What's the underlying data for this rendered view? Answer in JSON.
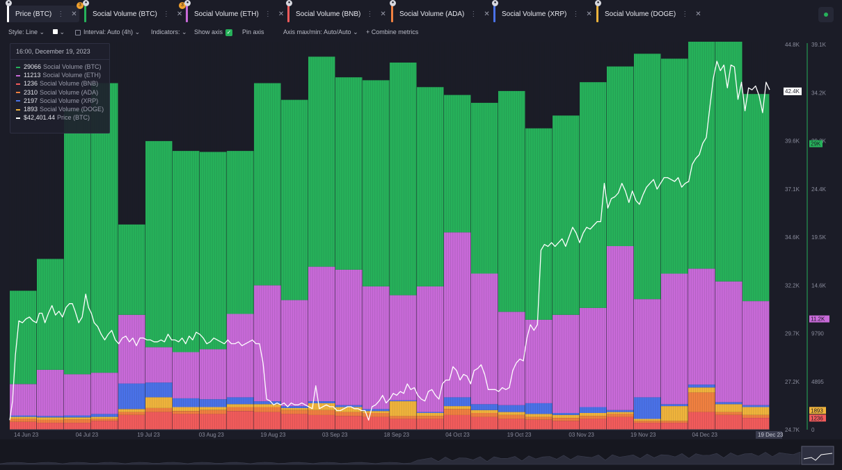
{
  "tabs": [
    {
      "label": "Price (BTC)",
      "color": "#ffffff",
      "active": true,
      "badge": "3"
    },
    {
      "label": "Social Volume (BTC)",
      "color": "#26b15a",
      "active": false,
      "badge": "3"
    },
    {
      "label": "Social Volume (ETH)",
      "color": "#c86ad8",
      "active": false,
      "badge": ""
    },
    {
      "label": "Social Volume (BNB)",
      "color": "#f25b5b",
      "active": false,
      "badge": ""
    },
    {
      "label": "Social Volume (ADA)",
      "color": "#f08040",
      "active": false,
      "badge": ""
    },
    {
      "label": "Social Volume (XRP)",
      "color": "#4a72e8",
      "active": false,
      "badge": ""
    },
    {
      "label": "Social Volume (DOGE)",
      "color": "#f0b43c",
      "active": false,
      "badge": ""
    }
  ],
  "toolbar": {
    "style_label": "Style: Line",
    "interval_label": "Interval: Auto (4h)",
    "indicators_label": "Indicators:",
    "show_axis_label": "Show axis",
    "pin_axis_label": "Pin axis",
    "axis_label": "Axis max/min: Auto/Auto",
    "combine_label": "Combine metrics"
  },
  "tooltip": {
    "date": "16:00, December 19, 2023",
    "rows": [
      {
        "value": "29066",
        "name": "Social Volume (BTC)",
        "color": "#26b15a"
      },
      {
        "value": "11213",
        "name": "Social Volume (ETH)",
        "color": "#c86ad8"
      },
      {
        "value": "1236",
        "name": "Social Volume (BNB)",
        "color": "#f25b5b"
      },
      {
        "value": "2310",
        "name": "Social Volume (ADA)",
        "color": "#f08040"
      },
      {
        "value": "2197",
        "name": "Social Volume (XRP)",
        "color": "#4a72e8"
      },
      {
        "value": "1893",
        "name": "Social Volume (DOGE)",
        "color": "#f0b43c"
      },
      {
        "value": "$42,401.44",
        "name": "Price (BTC)",
        "color": "#ffffff"
      }
    ]
  },
  "chart_data": {
    "type": "bar",
    "x_ticks": [
      "14 Jun 23",
      "04 Jul 23",
      "19 Jul 23",
      "03 Aug 23",
      "19 Aug 23",
      "03 Sep 23",
      "18 Sep 23",
      "04 Oct 23",
      "19 Oct 23",
      "03 Nov 23",
      "19 Nov 23",
      "04 Dec 23"
    ],
    "x_end_label": "19 Dec 23",
    "price_axis": {
      "ticks": [
        "44.8K",
        "42.1K",
        "39.6K",
        "37.1K",
        "34.6K",
        "32.2K",
        "29.7K",
        "27.2K",
        "24.7K"
      ],
      "min": 24700,
      "max": 44800,
      "current_label": "42.4K",
      "current": 42400
    },
    "volume_axis": {
      "ticks": [
        "39.1K",
        "34.2K",
        "29.3K",
        "24.4K",
        "19.5K",
        "14.6K",
        "9790",
        "4895",
        "0"
      ],
      "min": 0,
      "max": 39100,
      "labels": [
        {
          "text": "29K",
          "value": 29066,
          "color": "#26b15a"
        },
        {
          "text": "11.2K",
          "value": 11213,
          "color": "#c86ad8"
        },
        {
          "text": "1893",
          "value": 1893,
          "color": "#f0b43c"
        },
        {
          "text": "1236",
          "value": 1236,
          "color": "#f25b5b"
        }
      ]
    },
    "stack_order": [
      "BNB",
      "ADA",
      "DOGE",
      "XRP",
      "ETH",
      "BTC"
    ],
    "series_colors": {
      "BTC": "#26b15a",
      "ETH": "#c86ad8",
      "BNB": "#f25b5b",
      "ADA": "#f08040",
      "XRP": "#4a72e8",
      "DOGE": "#f0b43c"
    },
    "weeks": [
      {
        "BTC": 9500,
        "ETH": 3200,
        "BNB": 800,
        "ADA": 300,
        "XRP": 150,
        "DOGE": 200
      },
      {
        "BTC": 11300,
        "ETH": 4700,
        "BNB": 700,
        "ADA": 300,
        "XRP": 150,
        "DOGE": 250
      },
      {
        "BTC": 27000,
        "ETH": 4200,
        "BNB": 700,
        "ADA": 350,
        "XRP": 200,
        "DOGE": 200
      },
      {
        "BTC": 29500,
        "ETH": 4200,
        "BNB": 900,
        "ADA": 200,
        "XRP": 300,
        "DOGE": 200
      },
      {
        "BTC": 9200,
        "ETH": 7000,
        "BNB": 1500,
        "ADA": 300,
        "XRP": 2600,
        "DOGE": 300
      },
      {
        "BTC": 21000,
        "ETH": 3600,
        "BNB": 1800,
        "ADA": 400,
        "XRP": 1500,
        "DOGE": 1100
      },
      {
        "BTC": 20500,
        "ETH": 4700,
        "BNB": 1600,
        "ADA": 300,
        "XRP": 900,
        "DOGE": 400
      },
      {
        "BTC": 20100,
        "ETH": 5100,
        "BNB": 1600,
        "ADA": 400,
        "XRP": 800,
        "DOGE": 300
      },
      {
        "BTC": 16600,
        "ETH": 8500,
        "BNB": 1900,
        "ADA": 400,
        "XRP": 700,
        "DOGE": 300
      },
      {
        "BTC": 20600,
        "ETH": 11800,
        "BNB": 1800,
        "ADA": 500,
        "XRP": 300,
        "DOGE": 300
      },
      {
        "BTC": 20400,
        "ETH": 10800,
        "BNB": 1600,
        "ADA": 400,
        "XRP": 200,
        "DOGE": 200
      },
      {
        "BTC": 21400,
        "ETH": 13700,
        "BNB": 1500,
        "ADA": 500,
        "XRP": 200,
        "DOGE": 700
      },
      {
        "BTC": 19600,
        "ETH": 13800,
        "BNB": 1400,
        "ADA": 400,
        "XRP": 200,
        "DOGE": 500
      },
      {
        "BTC": 21000,
        "ETH": 12500,
        "BNB": 1300,
        "ADA": 400,
        "XRP": 200,
        "DOGE": 200
      },
      {
        "BTC": 23700,
        "ETH": 10700,
        "BNB": 1100,
        "ADA": 300,
        "XRP": 100,
        "DOGE": 1500
      },
      {
        "BTC": 20300,
        "ETH": 12800,
        "BNB": 1100,
        "ADA": 300,
        "XRP": 100,
        "DOGE": 300
      },
      {
        "BTC": 14000,
        "ETH": 16800,
        "BNB": 1500,
        "ADA": 600,
        "XRP": 900,
        "DOGE": 300
      },
      {
        "BTC": 17400,
        "ETH": 13300,
        "BNB": 1300,
        "ADA": 400,
        "XRP": 600,
        "DOGE": 300
      },
      {
        "BTC": 22500,
        "ETH": 9500,
        "BNB": 1100,
        "ADA": 400,
        "XRP": 700,
        "DOGE": 300
      },
      {
        "BTC": 19500,
        "ETH": 8500,
        "BNB": 1000,
        "ADA": 300,
        "XRP": 1100,
        "DOGE": 300
      },
      {
        "BTC": 20300,
        "ETH": 10000,
        "BNB": 900,
        "ADA": 300,
        "XRP": 200,
        "DOGE": 300
      },
      {
        "BTC": 23000,
        "ETH": 10100,
        "BNB": 1100,
        "ADA": 300,
        "XRP": 600,
        "DOGE": 300
      },
      {
        "BTC": 18300,
        "ETH": 16700,
        "BNB": 1300,
        "ADA": 300,
        "XRP": 200,
        "DOGE": 200
      },
      {
        "BTC": 25000,
        "ETH": 10000,
        "BNB": 700,
        "ADA": 200,
        "XRP": 2200,
        "DOGE": 200
      },
      {
        "BTC": 21900,
        "ETH": 13300,
        "BNB": 700,
        "ADA": 200,
        "XRP": 200,
        "DOGE": 1500
      },
      {
        "BTC": 33500,
        "ETH": 11800,
        "BNB": 1800,
        "ADA": 2000,
        "XRP": 300,
        "DOGE": 500
      },
      {
        "BTC": 31700,
        "ETH": 12300,
        "BNB": 1500,
        "ADA": 300,
        "XRP": 200,
        "DOGE": 800
      },
      {
        "BTC": 21100,
        "ETH": 10600,
        "BNB": 1200,
        "ADA": 300,
        "XRP": 200,
        "DOGE": 800
      }
    ],
    "price": [
      [
        0,
        25200
      ],
      [
        0.4,
        26200
      ],
      [
        0.8,
        28600
      ],
      [
        1.3,
        30400
      ],
      [
        1.8,
        30300
      ],
      [
        2.3,
        30500
      ],
      [
        2.8,
        30600
      ],
      [
        3.3,
        30400
      ],
      [
        3.8,
        30300
      ],
      [
        4.2,
        30800
      ],
      [
        4.6,
        30800
      ],
      [
        5,
        30300
      ],
      [
        5.5,
        30800
      ],
      [
        6,
        31200
      ],
      [
        6.5,
        30700
      ],
      [
        7,
        30900
      ],
      [
        7.5,
        30600
      ],
      [
        8,
        31100
      ],
      [
        8.5,
        31300
      ],
      [
        8.9,
        31300
      ],
      [
        9.3,
        30900
      ],
      [
        9.8,
        30300
      ],
      [
        10.3,
        30600
      ],
      [
        10.8,
        31800
      ],
      [
        11.2,
        31100
      ],
      [
        11.6,
        30800
      ],
      [
        12,
        30300
      ],
      [
        12.5,
        30100
      ],
      [
        13,
        29700
      ],
      [
        13.5,
        29400
      ],
      [
        14,
        29700
      ],
      [
        14.5,
        29900
      ],
      [
        15,
        29400
      ],
      [
        15.5,
        29200
      ],
      [
        16,
        29500
      ],
      [
        16.5,
        29600
      ],
      [
        17,
        29300
      ],
      [
        17.5,
        29500
      ],
      [
        18,
        29100
      ],
      [
        18.5,
        29500
      ],
      [
        19,
        29500
      ],
      [
        19.5,
        29400
      ],
      [
        20,
        29400
      ],
      [
        20.5,
        29300
      ],
      [
        21,
        29300
      ],
      [
        21.5,
        29400
      ],
      [
        22,
        29300
      ],
      [
        22.5,
        29700
      ],
      [
        23,
        29400
      ],
      [
        23.5,
        29400
      ],
      [
        24,
        29300
      ],
      [
        24.5,
        29500
      ],
      [
        25,
        29200
      ],
      [
        25.5,
        29600
      ],
      [
        26,
        29400
      ],
      [
        26.5,
        29800
      ],
      [
        27,
        29700
      ],
      [
        27.5,
        29500
      ],
      [
        28,
        29200
      ],
      [
        28.5,
        29300
      ],
      [
        29,
        29500
      ],
      [
        29.5,
        29400
      ],
      [
        30,
        29300
      ],
      [
        30.5,
        29200
      ],
      [
        31,
        29400
      ],
      [
        31.5,
        29200
      ],
      [
        32,
        29200
      ],
      [
        32.5,
        29300
      ],
      [
        33,
        29100
      ],
      [
        33.5,
        29200
      ],
      [
        34,
        29300
      ],
      [
        34.5,
        29400
      ],
      [
        35,
        29200
      ],
      [
        35.5,
        29200
      ],
      [
        36,
        28200
      ],
      [
        36.5,
        26300
      ],
      [
        37,
        26200
      ],
      [
        37.5,
        26000
      ],
      [
        38,
        26100
      ],
      [
        38.5,
        26000
      ],
      [
        39,
        26100
      ],
      [
        39.5,
        25900
      ],
      [
        40,
        26100
      ],
      [
        40.5,
        26000
      ],
      [
        41,
        26000
      ],
      [
        41.5,
        26100
      ],
      [
        42,
        26000
      ],
      [
        42.5,
        25900
      ],
      [
        43,
        25800
      ],
      [
        43.5,
        27000
      ],
      [
        44,
        25800
      ],
      [
        44.5,
        25900
      ],
      [
        45,
        26000
      ],
      [
        45.5,
        25900
      ],
      [
        46,
        25900
      ],
      [
        46.5,
        25700
      ],
      [
        47,
        25700
      ],
      [
        47.5,
        25800
      ],
      [
        48,
        25900
      ],
      [
        48.5,
        25900
      ],
      [
        49,
        25800
      ],
      [
        49.5,
        25800
      ],
      [
        50,
        25700
      ],
      [
        50.5,
        25700
      ],
      [
        51,
        25200
      ],
      [
        51.5,
        25900
      ],
      [
        52,
        26000
      ],
      [
        52.5,
        26200
      ],
      [
        53,
        26500
      ],
      [
        53.5,
        26100
      ],
      [
        54,
        26300
      ],
      [
        54.5,
        26600
      ],
      [
        55,
        26500
      ],
      [
        55.5,
        26700
      ],
      [
        56,
        26600
      ],
      [
        56.5,
        27100
      ],
      [
        57,
        26800
      ],
      [
        57.5,
        26900
      ],
      [
        58,
        26500
      ],
      [
        58.5,
        26300
      ],
      [
        59,
        26200
      ],
      [
        59.5,
        26700
      ],
      [
        60,
        26800
      ],
      [
        60.5,
        26500
      ],
      [
        61,
        26300
      ],
      [
        61.5,
        27100
      ],
      [
        62,
        27300
      ],
      [
        62.5,
        27300
      ],
      [
        63,
        28000
      ],
      [
        63.5,
        27800
      ],
      [
        64,
        27300
      ],
      [
        64.5,
        27600
      ],
      [
        65,
        27500
      ],
      [
        65.5,
        27100
      ],
      [
        66,
        27800
      ],
      [
        66.5,
        27900
      ],
      [
        67,
        28100
      ],
      [
        67.5,
        27600
      ],
      [
        68,
        26800
      ],
      [
        68.5,
        26800
      ],
      [
        69,
        26800
      ],
      [
        69.5,
        26700
      ],
      [
        70,
        26900
      ],
      [
        70.5,
        26800
      ],
      [
        71,
        26900
      ],
      [
        71.5,
        27800
      ],
      [
        72,
        28200
      ],
      [
        72.5,
        28400
      ],
      [
        73,
        28300
      ],
      [
        73.5,
        29500
      ],
      [
        74,
        30200
      ],
      [
        74.5,
        29900
      ],
      [
        75,
        30200
      ],
      [
        75.5,
        34100
      ],
      [
        76,
        34400
      ],
      [
        76.5,
        34300
      ],
      [
        77,
        34500
      ],
      [
        77.5,
        34300
      ],
      [
        78,
        34500
      ],
      [
        78.5,
        34700
      ],
      [
        79,
        34300
      ],
      [
        79.5,
        34800
      ],
      [
        80,
        35300
      ],
      [
        80.5,
        35000
      ],
      [
        81,
        34500
      ],
      [
        81.5,
        35000
      ],
      [
        82,
        35300
      ],
      [
        82.5,
        35200
      ],
      [
        83,
        35400
      ],
      [
        83.5,
        35600
      ],
      [
        84,
        35600
      ],
      [
        84.5,
        37600
      ],
      [
        85,
        36300
      ],
      [
        85.5,
        36800
      ],
      [
        86,
        36900
      ],
      [
        86.5,
        37100
      ],
      [
        87,
        37600
      ],
      [
        87.5,
        37200
      ],
      [
        88,
        36600
      ],
      [
        88.5,
        37200
      ],
      [
        89,
        36700
      ],
      [
        89.5,
        36500
      ],
      [
        90,
        37000
      ],
      [
        90.5,
        37400
      ],
      [
        91,
        37600
      ],
      [
        91.5,
        37800
      ],
      [
        92,
        37300
      ],
      [
        92.5,
        37600
      ],
      [
        93,
        37900
      ],
      [
        93.5,
        37900
      ],
      [
        94,
        37800
      ],
      [
        94.5,
        37700
      ],
      [
        95,
        37900
      ],
      [
        95.5,
        37400
      ],
      [
        96,
        37600
      ],
      [
        96.5,
        37700
      ],
      [
        97,
        38600
      ],
      [
        97.5,
        38900
      ],
      [
        98,
        39100
      ],
      [
        98.5,
        39700
      ],
      [
        99,
        40000
      ],
      [
        99.5,
        41600
      ],
      [
        100,
        43100
      ],
      [
        100.5,
        44000
      ],
      [
        101,
        43500
      ],
      [
        101.5,
        43800
      ],
      [
        102,
        42600
      ],
      [
        102.5,
        43800
      ],
      [
        103,
        43700
      ],
      [
        103.5,
        42000
      ],
      [
        104,
        42900
      ],
      [
        104.5,
        41400
      ],
      [
        105,
        42600
      ],
      [
        105.5,
        42500
      ],
      [
        106,
        42700
      ],
      [
        106.5,
        42200
      ],
      [
        107,
        41300
      ],
      [
        107.5,
        42900
      ],
      [
        108,
        42500
      ]
    ]
  },
  "navigator": {}
}
